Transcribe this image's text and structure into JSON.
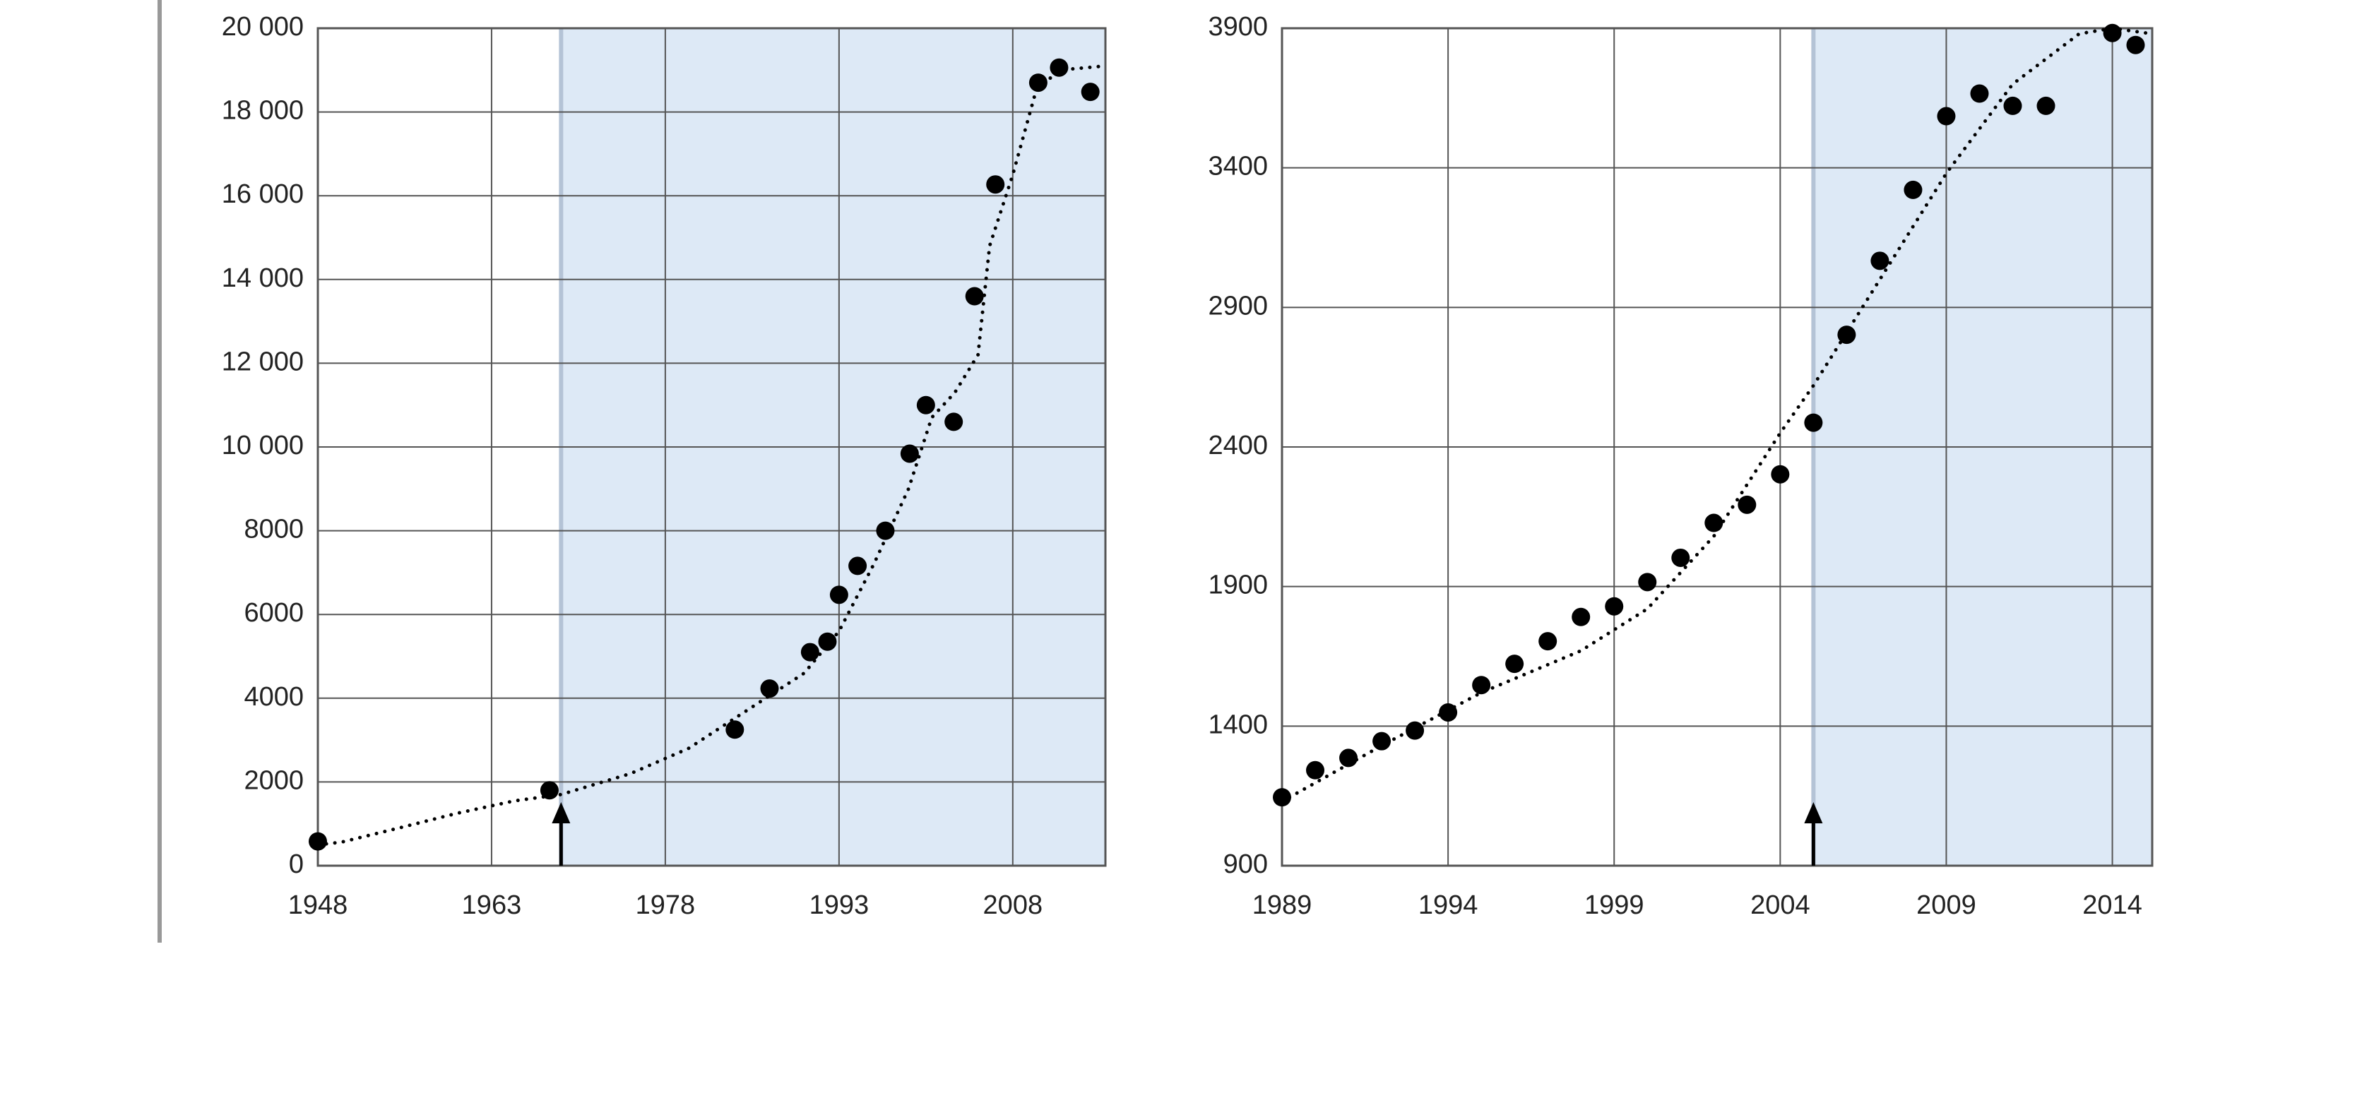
{
  "chart_data": [
    {
      "type": "scatter",
      "x": [
        1948,
        1968,
        1984,
        1987,
        1990.5,
        1992,
        1993,
        1994.6,
        1997,
        1999.1,
        2000.5,
        2002.9,
        2004.7,
        2006.5,
        2010.2,
        2012,
        2014.7
      ],
      "values": [
        580,
        1800,
        3250,
        4230,
        5100,
        5350,
        6470,
        7160,
        8000,
        9840,
        11000,
        10600,
        13600,
        16270,
        18700,
        19060,
        18480
      ],
      "trend_x": [
        1948,
        1950,
        1955,
        1960,
        1965,
        1969,
        1975,
        1980,
        1985,
        1990,
        1993,
        1996,
        1999,
        2001,
        2003,
        2005,
        2006,
        2008,
        2010,
        2012,
        2016
      ],
      "trend_values": [
        500,
        560,
        900,
        1250,
        1550,
        1700,
        2200,
        2800,
        3700,
        4600,
        5600,
        7200,
        9000,
        10700,
        11300,
        12200,
        14800,
        16500,
        18500,
        19000,
        19100
      ],
      "highlight_range": [
        1969,
        2016
      ],
      "xlim": [
        1948,
        2016
      ],
      "ylim": [
        0,
        20000
      ],
      "xticks": [
        1948,
        1963,
        1978,
        1993,
        2008
      ],
      "yticks": [
        0,
        2000,
        4000,
        6000,
        8000,
        {
          "value": 10000,
          "label": "10 000"
        },
        {
          "value": 12000,
          "label": "12 000"
        },
        {
          "value": 14000,
          "label": "14 000"
        },
        {
          "value": 16000,
          "label": "16 000"
        },
        {
          "value": 18000,
          "label": "18 000"
        },
        {
          "value": 20000,
          "label": "20 000"
        }
      ],
      "grid": true,
      "color": "#000000",
      "highlight_color": "#dde9f6"
    },
    {
      "type": "scatter",
      "x": [
        1989,
        1990,
        1991,
        1992,
        1993,
        1994,
        1995,
        1996,
        1997,
        1998,
        1999,
        2000,
        2001,
        2002,
        2003,
        2004,
        2005,
        2006,
        2007,
        2008,
        2009,
        2010,
        2011,
        2012,
        2014,
        2014.7
      ],
      "values": [
        1145,
        1242,
        1286,
        1346,
        1384,
        1449,
        1547,
        1623,
        1704,
        1791,
        1829,
        1916,
        2003,
        2128,
        2193,
        2302,
        2487,
        2802,
        3067,
        3321,
        3585,
        3666,
        3622,
        3622,
        3883,
        3840
      ],
      "trend_x": [
        1989,
        1992,
        1995,
        1998,
        2000,
        2002,
        2004,
        2005,
        2007,
        2009,
        2011,
        2013,
        2014,
        2015.2
      ],
      "trend_values": [
        1130,
        1330,
        1520,
        1670,
        1820,
        2080,
        2450,
        2620,
        3000,
        3380,
        3700,
        3880,
        3900,
        3880
      ],
      "highlight_range": [
        2005,
        2015.2
      ],
      "xlim": [
        1989,
        2015.2
      ],
      "ylim": [
        900,
        3900
      ],
      "xticks": [
        1989,
        1994,
        1999,
        2004,
        2009,
        2014
      ],
      "yticks": [
        900,
        1400,
        1900,
        2400,
        2900,
        3400,
        3900
      ],
      "grid": true,
      "color": "#000000",
      "highlight_color": "#dde9f6"
    }
  ]
}
